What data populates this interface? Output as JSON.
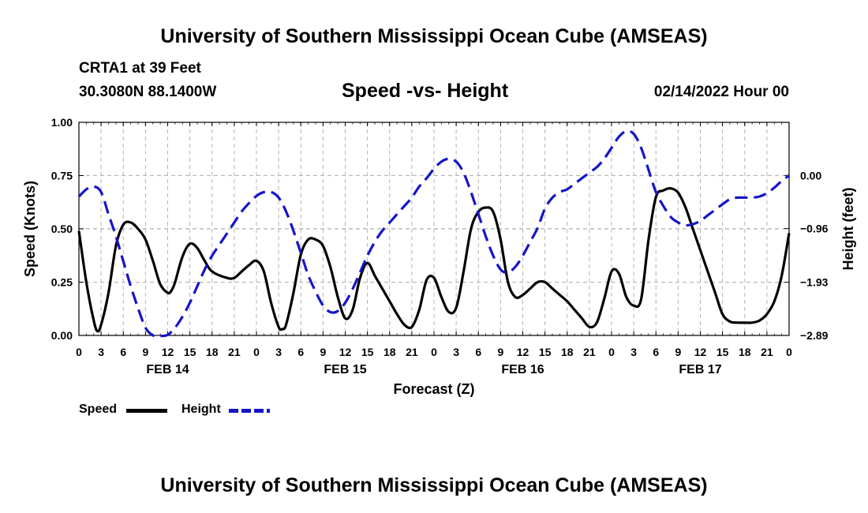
{
  "page": {
    "top_title": "University of Southern Mississippi Ocean Cube (AMSEAS)",
    "bottom_title": "University of Southern Mississippi Ocean Cube (AMSEAS)",
    "station": "CRTA1 at 39 Feet",
    "coords": "30.3080N  88.1400W",
    "chart_title": "Speed -vs- Height",
    "date": "02/14/2022 Hour 00"
  },
  "legend": {
    "speed_label": "Speed",
    "height_label": "Height"
  },
  "colors": {
    "speed": "#000000",
    "height": "#1515c8",
    "grid": "#b4b4b4"
  },
  "chart_data": {
    "type": "line",
    "title": "Speed -vs- Height",
    "xlabel": "Forecast (Z)",
    "ylabel": "Speed (Knots)",
    "y2label": "Height (feet)",
    "x_unit": "hours from 02/14/2022 00Z",
    "xlim": [
      0,
      96
    ],
    "ylim": [
      0,
      1
    ],
    "y2lim": [
      -2.89,
      0.96
    ],
    "grid": true,
    "legend_position": "bottom-left",
    "x_ticks": [
      0,
      3,
      6,
      9,
      12,
      15,
      18,
      21,
      24,
      27,
      30,
      33,
      36,
      39,
      42,
      45,
      48,
      51,
      54,
      57,
      60,
      63,
      66,
      69,
      72,
      75,
      78,
      81,
      84,
      87,
      90,
      93,
      96
    ],
    "x_tick_labels": [
      "0",
      "3",
      "6",
      "9",
      "12",
      "15",
      "18",
      "21",
      "0",
      "3",
      "6",
      "9",
      "12",
      "15",
      "18",
      "21",
      "0",
      "3",
      "6",
      "9",
      "12",
      "15",
      "18",
      "21",
      "0",
      "3",
      "6",
      "9",
      "12",
      "15",
      "18",
      "21",
      "0"
    ],
    "day_labels": [
      {
        "at": 12,
        "label": "FEB 14"
      },
      {
        "at": 36,
        "label": "FEB 15"
      },
      {
        "at": 60,
        "label": "FEB 16"
      },
      {
        "at": 84,
        "label": "FEB 17"
      }
    ],
    "y_ticks": [
      0,
      0.25,
      0.5,
      0.75,
      1.0
    ],
    "y_tick_labels": [
      "0.00",
      "0.25",
      "0.50",
      "0.75",
      "1.00"
    ],
    "y2_ticks": [
      0.0,
      -0.96,
      -1.93,
      -2.89
    ],
    "y2_tick_labels": [
      "0.00",
      "−0.96",
      "−1.93",
      "−2.89"
    ],
    "series": [
      {
        "name": "Speed",
        "axis": "left",
        "style": "solid",
        "x": [
          0,
          1,
          2,
          2.5,
          3,
          4,
          5,
          6,
          7,
          8,
          9,
          10,
          11,
          12,
          12.5,
          13,
          14,
          15,
          16,
          17,
          18,
          20,
          21,
          22,
          23,
          24,
          25,
          26,
          27,
          27.5,
          28,
          29,
          30,
          31,
          32,
          33,
          34,
          35,
          36,
          37,
          38,
          39,
          40,
          41,
          42,
          43,
          44,
          45,
          46,
          47,
          48,
          49,
          50,
          51,
          52,
          53,
          54,
          55,
          56,
          57,
          58,
          59,
          60,
          61,
          62,
          63,
          64,
          65,
          66,
          67,
          68,
          69,
          70,
          71,
          72,
          73,
          74,
          75,
          76,
          77,
          78,
          79,
          80,
          81,
          82,
          83,
          84,
          85,
          86,
          87,
          88,
          89,
          90,
          91,
          92,
          93,
          94,
          95,
          96
        ],
        "values": [
          0.49,
          0.25,
          0.07,
          0.02,
          0.05,
          0.2,
          0.42,
          0.52,
          0.53,
          0.5,
          0.45,
          0.35,
          0.24,
          0.2,
          0.21,
          0.25,
          0.37,
          0.43,
          0.41,
          0.35,
          0.3,
          0.27,
          0.27,
          0.3,
          0.33,
          0.35,
          0.3,
          0.15,
          0.04,
          0.03,
          0.05,
          0.2,
          0.38,
          0.45,
          0.45,
          0.42,
          0.32,
          0.18,
          0.08,
          0.12,
          0.27,
          0.34,
          0.28,
          0.22,
          0.16,
          0.1,
          0.05,
          0.04,
          0.12,
          0.26,
          0.27,
          0.18,
          0.11,
          0.13,
          0.3,
          0.5,
          0.58,
          0.6,
          0.58,
          0.45,
          0.25,
          0.18,
          0.19,
          0.22,
          0.25,
          0.25,
          0.22,
          0.19,
          0.16,
          0.12,
          0.08,
          0.04,
          0.06,
          0.17,
          0.3,
          0.29,
          0.18,
          0.14,
          0.17,
          0.45,
          0.65,
          0.68,
          0.69,
          0.67,
          0.6,
          0.5,
          0.4,
          0.3,
          0.2,
          0.1,
          0.065,
          0.06,
          0.06,
          0.06,
          0.07,
          0.1,
          0.16,
          0.28,
          0.48
        ]
      },
      {
        "name": "Height",
        "axis": "right",
        "style": "dashed",
        "x": [
          0,
          1,
          2,
          3,
          4,
          5,
          6,
          7,
          8,
          9,
          10,
          11,
          12,
          13,
          14,
          15,
          16,
          17,
          18,
          19,
          20,
          21,
          22,
          23,
          24,
          25,
          26,
          27,
          28,
          29,
          30,
          31,
          32,
          33,
          34,
          35,
          36,
          37,
          38,
          39,
          40,
          41,
          42,
          43,
          44,
          45,
          46,
          47,
          48,
          49,
          50,
          51,
          52,
          53,
          54,
          55,
          56,
          57,
          58,
          59,
          60,
          61,
          62,
          63,
          64,
          65,
          66,
          67,
          68,
          69,
          70,
          71,
          72,
          73,
          74,
          75,
          76,
          77,
          78,
          79,
          80,
          81,
          82,
          83,
          84,
          85,
          86,
          87,
          88,
          89,
          90,
          91,
          92,
          93,
          94,
          95,
          96
        ],
        "values": [
          -0.38,
          -0.25,
          -0.2,
          -0.3,
          -0.7,
          -1.1,
          -1.55,
          -2.0,
          -2.4,
          -2.75,
          -2.89,
          -2.9,
          -2.88,
          -2.75,
          -2.55,
          -2.3,
          -2.0,
          -1.7,
          -1.45,
          -1.25,
          -1.05,
          -0.85,
          -0.65,
          -0.5,
          -0.37,
          -0.3,
          -0.3,
          -0.4,
          -0.65,
          -1.0,
          -1.4,
          -1.8,
          -2.1,
          -2.35,
          -2.47,
          -2.45,
          -2.3,
          -2.05,
          -1.75,
          -1.45,
          -1.2,
          -1.0,
          -0.85,
          -0.7,
          -0.55,
          -0.4,
          -0.2,
          -0.05,
          0.12,
          0.25,
          0.3,
          0.25,
          0.05,
          -0.3,
          -0.7,
          -1.1,
          -1.45,
          -1.7,
          -1.75,
          -1.65,
          -1.45,
          -1.2,
          -0.95,
          -0.6,
          -0.4,
          -0.3,
          -0.25,
          -0.15,
          -0.05,
          0.05,
          0.15,
          0.3,
          0.5,
          0.7,
          0.8,
          0.75,
          0.5,
          0.1,
          -0.3,
          -0.55,
          -0.75,
          -0.85,
          -0.9,
          -0.88,
          -0.82,
          -0.72,
          -0.62,
          -0.52,
          -0.43,
          -0.4,
          -0.4,
          -0.4,
          -0.38,
          -0.32,
          -0.22,
          -0.1,
          0.0
        ]
      }
    ]
  }
}
